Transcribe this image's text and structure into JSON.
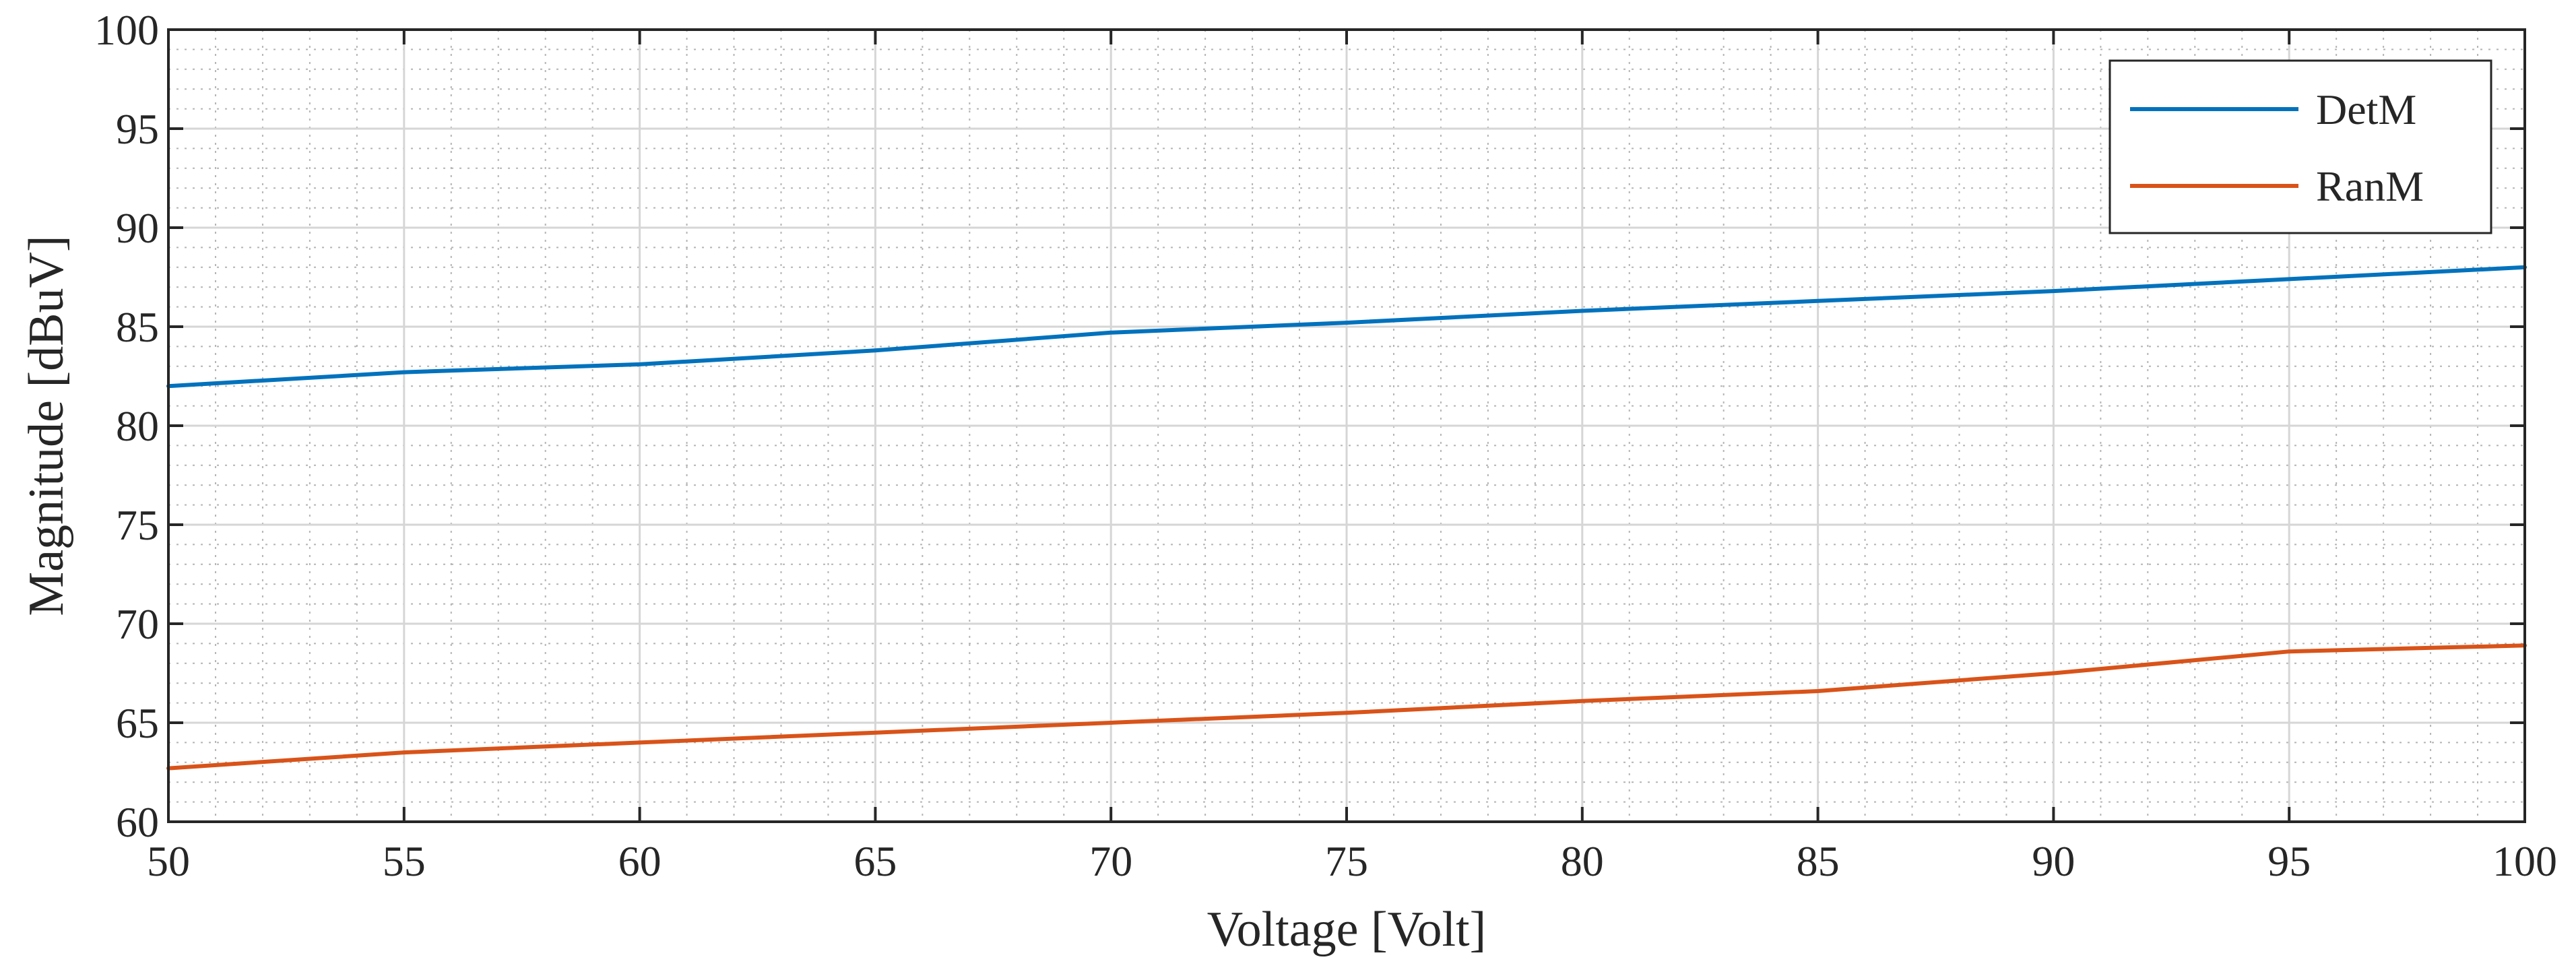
{
  "chart_data": {
    "type": "line",
    "title": "",
    "xlabel": "Voltage [Volt]",
    "ylabel": "Magnitude [dBuV]",
    "xlim": [
      50,
      100
    ],
    "ylim": [
      60,
      100
    ],
    "xticks": [
      50,
      55,
      60,
      65,
      70,
      75,
      80,
      85,
      90,
      95,
      100
    ],
    "yticks": [
      60,
      65,
      70,
      75,
      80,
      85,
      90,
      95,
      100
    ],
    "xtick_labels": [
      "50",
      "55",
      "60",
      "65",
      "70",
      "75",
      "80",
      "85",
      "90",
      "95",
      "100"
    ],
    "ytick_labels": [
      "60",
      "65",
      "70",
      "75",
      "80",
      "85",
      "90",
      "95",
      "100"
    ],
    "grid": true,
    "minor_grid": true,
    "legend_position": "top-right",
    "x": [
      50,
      55,
      60,
      65,
      70,
      75,
      80,
      85,
      90,
      95,
      100
    ],
    "series": [
      {
        "name": "DetM",
        "color": "#0072BD",
        "values": [
          82.0,
          82.7,
          83.1,
          83.8,
          84.7,
          85.2,
          85.8,
          86.3,
          86.8,
          87.4,
          88.0
        ]
      },
      {
        "name": "RanM",
        "color": "#D95319",
        "values": [
          62.7,
          63.5,
          64.0,
          64.5,
          65.0,
          65.5,
          66.1,
          66.6,
          67.5,
          68.6,
          68.9
        ]
      }
    ]
  }
}
